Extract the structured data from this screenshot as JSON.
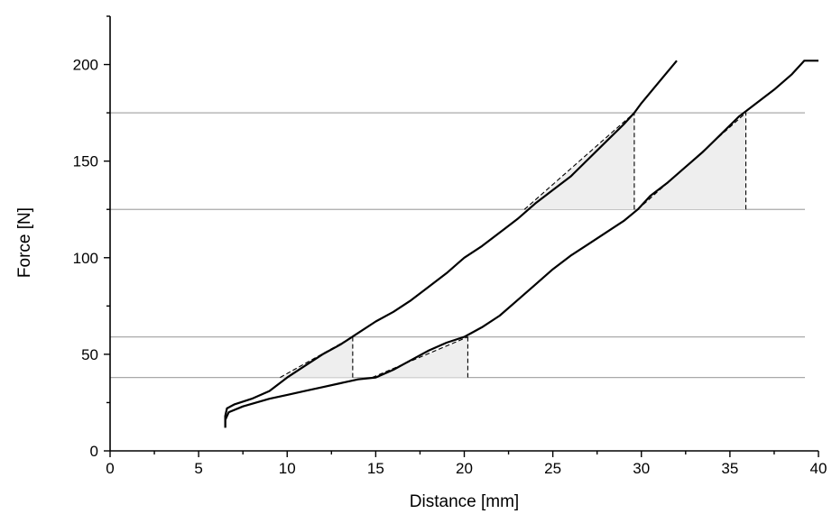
{
  "chart_data": {
    "type": "line",
    "xlabel": "Distance [mm]",
    "ylabel": "Force [N]",
    "xlim": [
      0,
      40
    ],
    "ylim": [
      0,
      225
    ],
    "xticks": [
      0,
      5,
      10,
      15,
      20,
      25,
      30,
      35,
      40
    ],
    "yticks": [
      0,
      50,
      100,
      150,
      200
    ],
    "grid": false,
    "reference_lines_y": [
      38,
      59,
      125,
      175
    ],
    "series": [
      {
        "x": [
          6.5,
          6.5,
          6.6,
          7.0,
          8.0,
          9.0,
          10.0,
          11.0,
          12.0,
          13.0,
          14.0,
          15.0,
          16.0,
          17.0,
          18.0,
          19.0,
          20.0,
          21.0,
          22.0,
          23.0,
          24.0,
          25.0,
          26.0,
          27.0,
          28.0,
          29.0,
          29.6,
          30.0,
          31.0,
          32.0
        ],
        "values": [
          12,
          18,
          22,
          24,
          27,
          31,
          38,
          44,
          50,
          55,
          61,
          67,
          72,
          78,
          85,
          92,
          100,
          106,
          113,
          120,
          128,
          135,
          142,
          151,
          160,
          169,
          175,
          180,
          191,
          202
        ]
      },
      {
        "x": [
          6.5,
          6.5,
          6.7,
          7.5,
          9.0,
          10.0,
          11.0,
          12.0,
          13.0,
          14.0,
          15.0,
          16.0,
          17.0,
          18.0,
          19.0,
          20.0,
          21.0,
          22.0,
          23.0,
          24.0,
          25.0,
          26.0,
          27.0,
          28.0,
          29.0,
          29.8,
          30.5,
          31.5,
          32.5,
          33.5,
          34.5,
          35.5,
          36.5,
          37.5,
          38.5,
          39.2,
          40.0
        ],
        "values": [
          12,
          16,
          20,
          23,
          27,
          29,
          31,
          33,
          35,
          37,
          38,
          42,
          47,
          52,
          56,
          59,
          64,
          70,
          78,
          86,
          94,
          101,
          107,
          113,
          119,
          125,
          132,
          139,
          147,
          155,
          164,
          173,
          180,
          187,
          195,
          202,
          202
        ]
      }
    ],
    "shaded_regions": [
      {
        "x_start": 9.6,
        "x_end": 13.7,
        "y_low": 38,
        "y_high": 59
      },
      {
        "x_start": 14.8,
        "x_end": 20.2,
        "y_low": 38,
        "y_high": 59
      },
      {
        "x_start": 23.4,
        "x_end": 29.6,
        "y_low": 125,
        "y_high": 175
      },
      {
        "x_start": 29.8,
        "x_end": 35.9,
        "y_low": 125,
        "y_high": 175
      }
    ],
    "colors": {
      "curve": "#000000",
      "reference": "#a9a9a9",
      "shade": "#eeeeee"
    }
  }
}
